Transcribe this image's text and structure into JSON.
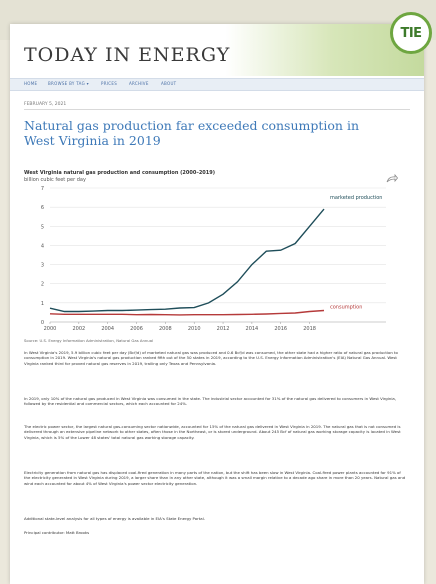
{
  "badge": {
    "text": "TIE"
  },
  "site": {
    "title": "TODAY IN ENERGY"
  },
  "nav": {
    "items": [
      "HOME",
      "BROWSE BY TAG ▾",
      "PRICES",
      "ARCHIVE",
      "ABOUT"
    ]
  },
  "article": {
    "date": "FEBRUARY 5, 2021",
    "headline": "Natural gas production far exceeded consumption in West Virginia in 2019"
  },
  "chart_data": {
    "type": "line",
    "title": "West Virginia natural gas production and consumption (2000–2019)",
    "ylabel": "billion cubic feet per day",
    "ylim": [
      0,
      7
    ],
    "yticks": [
      0,
      1,
      2,
      3,
      4,
      5,
      6,
      7
    ],
    "xlim": [
      2000,
      2019
    ],
    "xticks": [
      2000,
      2002,
      2004,
      2006,
      2008,
      2010,
      2012,
      2014,
      2016,
      2018
    ],
    "series": [
      {
        "name": "marketed production",
        "color": "#1f4e5a",
        "x": [
          2000,
          2001,
          2002,
          2003,
          2004,
          2005,
          2006,
          2007,
          2008,
          2009,
          2010,
          2011,
          2012,
          2013,
          2014,
          2015,
          2016,
          2017,
          2018,
          2019
        ],
        "values": [
          0.72,
          0.55,
          0.55,
          0.57,
          0.6,
          0.6,
          0.62,
          0.65,
          0.67,
          0.73,
          0.75,
          1.0,
          1.45,
          2.1,
          3.0,
          3.7,
          3.75,
          4.1,
          5.0,
          5.9
        ]
      },
      {
        "name": "consumption",
        "color": "#b53a3a",
        "x": [
          2000,
          2001,
          2002,
          2003,
          2004,
          2005,
          2006,
          2007,
          2008,
          2009,
          2010,
          2011,
          2012,
          2013,
          2014,
          2015,
          2016,
          2017,
          2018,
          2019
        ],
        "values": [
          0.43,
          0.4,
          0.4,
          0.4,
          0.4,
          0.4,
          0.38,
          0.39,
          0.38,
          0.37,
          0.38,
          0.38,
          0.38,
          0.39,
          0.4,
          0.42,
          0.45,
          0.47,
          0.55,
          0.6
        ]
      }
    ],
    "source": "Source: U.S. Energy Information Administration, Natural Gas Annual"
  },
  "paragraphs": [
    "In West Virginia's 2019, 5.9 billion cubic feet per day (Bcf/d) of marketed natural gas was produced and 0.6 Bcf/d was consumed, the other state had a higher ratio of natural gas production to consumption in 2019. West Virginia's natural gas production ranked fifth out of the 50 states in 2019, according to the U.S. Energy Information Administration's (EIA) Natural Gas Annual. West Virginia ranked third for proved natural gas reserves in 2019, trailing only Texas and Pennsylvania.",
    "In 2019, only 10% of the natural gas produced in West Virginia was consumed in the state. The industrial sector accounted for 31% of the natural gas delivered to consumers in West Virginia, followed by the residential and commercial sectors, which each accounted for 24%.",
    "The electric power sector, the largest natural gas-consuming sector nationwide, accounted for 15% of the natural gas delivered in West Virginia in 2019. The natural gas that is not consumed is delivered through an extensive pipeline network to other states, often those in the Northeast, or is stored underground. About 245 Bcf of natural gas working storage capacity is located in West Virginia, which is 5% of the Lower 48 states' total natural gas working storage capacity.",
    "Electricity generation from natural gas has displaced coal-fired generation in many parts of the nation, but the shift has been slow in West Virginia. Coal-fired power plants accounted for 91% of the electricity generated in West Virginia during 2019, a larger share than in any other state, although it was a small margin relative to a decade ago share in more than 20 years. Natural gas and wind each accounted for about 4% of West Virginia's power sector electricity generation.",
    "Additional state-level analysis for all types of energy is available in EIA's State Energy Portal.",
    "Principal contributor: Matt Brooks"
  ]
}
